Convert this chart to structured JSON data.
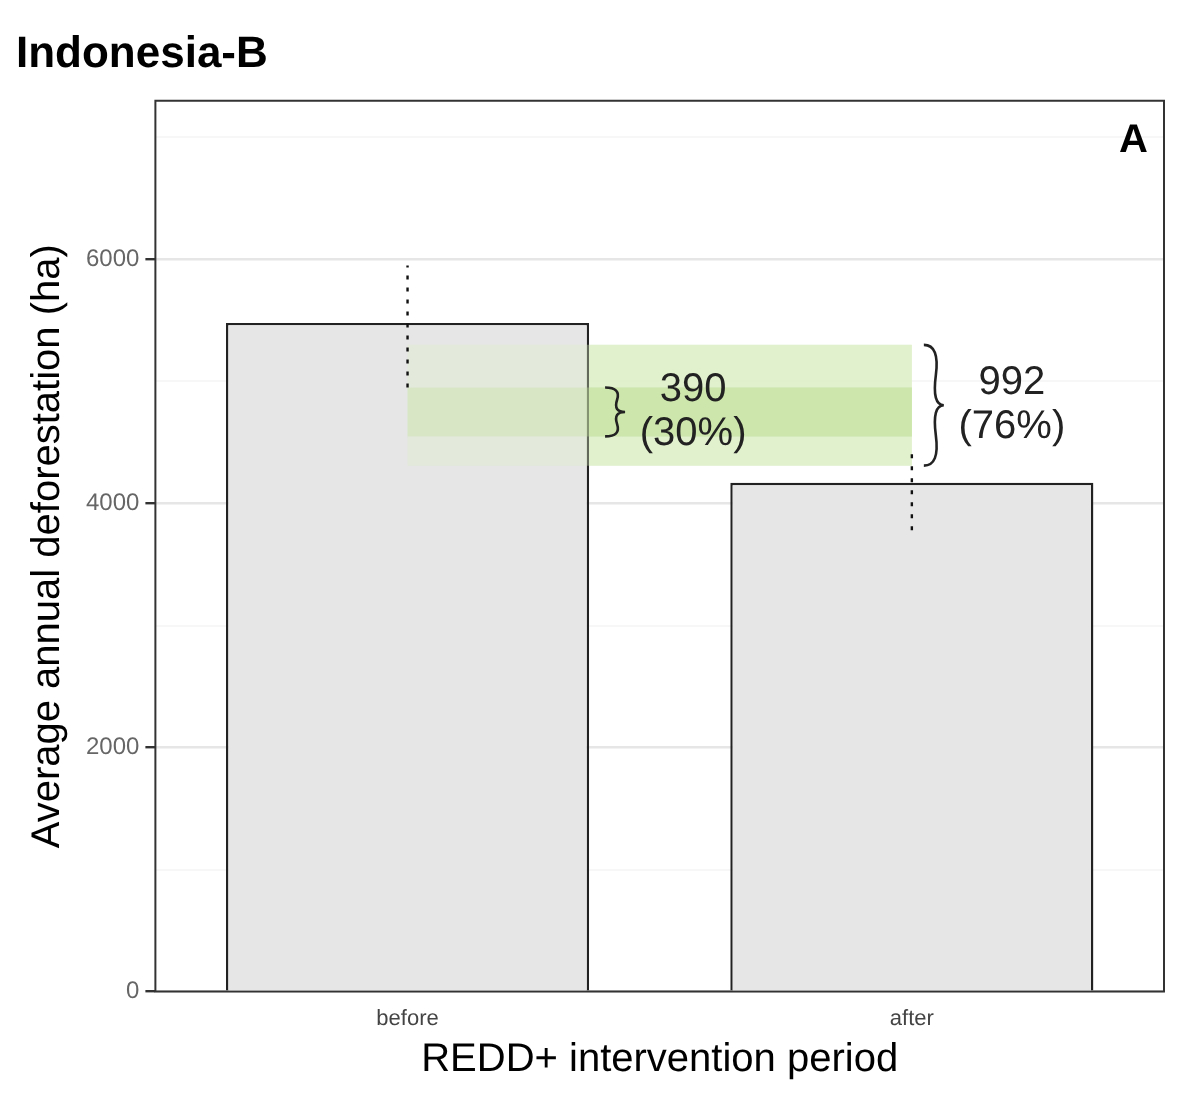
{
  "chart_data": {
    "type": "bar",
    "title": "Indonesia-B",
    "xlabel": "REDD+ intervention period",
    "ylabel": "Average annual deforestation (ha)",
    "categories": [
      "before",
      "after"
    ],
    "values": [
      5480,
      4170
    ],
    "color": "#e6e6e6",
    "errors": [
      [
        4950,
        5950
      ],
      [
        3780,
        4450
      ]
    ],
    "ylim": [
      0,
      7300
    ],
    "yticks": [
      0,
      {
        "value": 1000,
        "label": null
      },
      2000,
      {
        "value": 3000,
        "label": null
      },
      4000,
      {
        "value": 5000,
        "label": null
      },
      6000,
      {
        "value": 7000,
        "label": null
      }
    ],
    "grid": "y",
    "legend": false,
    "bands": [
      {
        "axis": "y",
        "from": 4310,
        "to": 5300,
        "label": "992\n(76%)",
        "color": "#ddefc6"
      },
      {
        "axis": "y",
        "from": 4550,
        "to": 4950,
        "label": "390\n(30%)",
        "color": "#c6e3a0"
      }
    ],
    "annotations": [
      "A"
    ]
  }
}
